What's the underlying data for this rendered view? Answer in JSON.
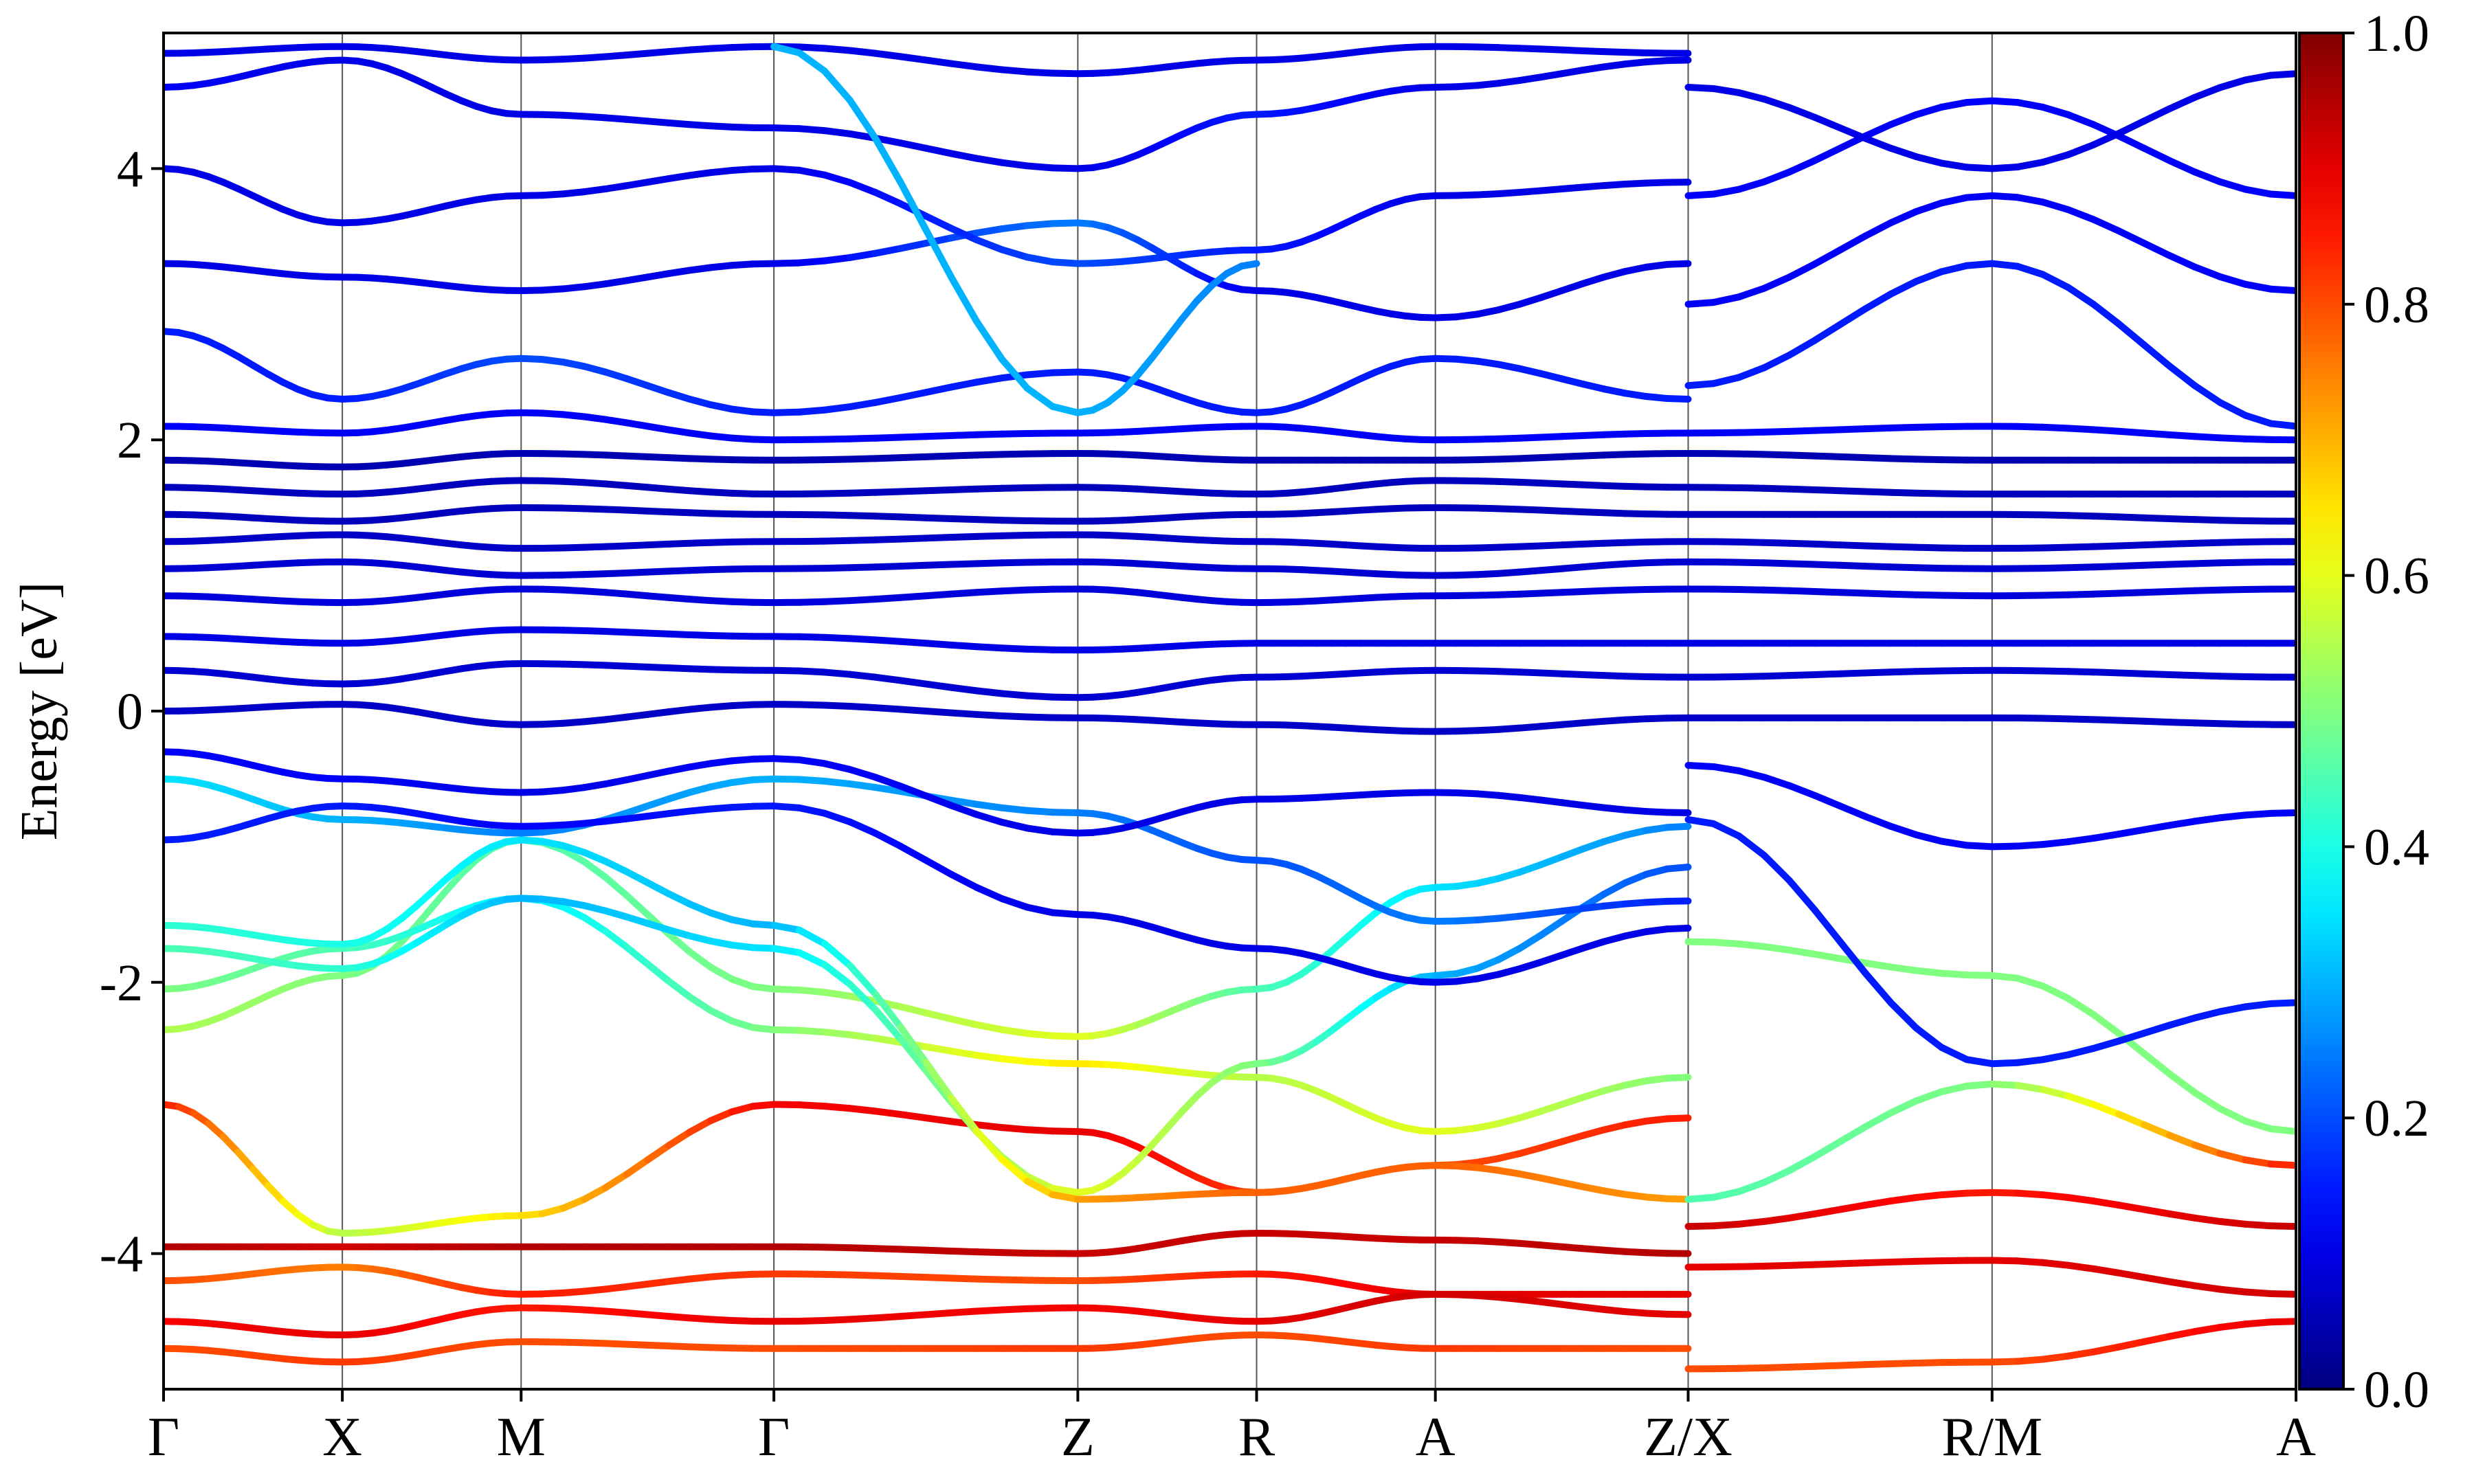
{
  "chart_data": {
    "type": "line",
    "title": "",
    "xlabel": "",
    "ylabel": "Energy [eV]",
    "ylim": [
      -5,
      5
    ],
    "y_ticks": [
      -4,
      -2,
      0,
      2,
      4
    ],
    "y_tick_labels": [
      "-4",
      "-2",
      "0",
      "2",
      "4"
    ],
    "grid": false,
    "kpoints": [
      {
        "label": "Γ",
        "x": 0.0
      },
      {
        "label": "X",
        "x": 0.5
      },
      {
        "label": "M",
        "x": 1.0
      },
      {
        "label": "Γ",
        "x": 1.707
      },
      {
        "label": "Z",
        "x": 2.557
      },
      {
        "label": "R",
        "x": 3.057
      },
      {
        "label": "A",
        "x": 3.557
      },
      {
        "label": "Z/X",
        "x": 4.264
      },
      {
        "label": "R/M",
        "x": 5.114
      },
      {
        "label": "A",
        "x": 5.964
      }
    ],
    "xlim": [
      0,
      5.964
    ],
    "colorbar": {
      "colormap": "jet",
      "range": [
        0.0,
        1.0
      ],
      "ticks": [
        0.0,
        0.2,
        0.4,
        0.6,
        0.8,
        1.0
      ],
      "tick_labels": [
        "0.0",
        "0.2",
        "0.4",
        "0.6",
        "0.8",
        "1.0"
      ],
      "placement": "right"
    },
    "series": [
      {
        "x": [
          0,
          0.5,
          1,
          1.707,
          2.557,
          3.057,
          3.557,
          4.264
        ],
        "y": [
          -2.9,
          -3.85,
          -3.72,
          -2.9,
          -3.1,
          -3.55,
          -3.35,
          -3.0
        ],
        "weight": [
          0.85,
          0.55,
          0.65,
          0.88,
          0.9,
          0.82,
          0.8,
          0.85
        ]
      },
      {
        "x": [
          0,
          0.5,
          1,
          1.707,
          2.557,
          3.057,
          3.557,
          4.264
        ],
        "y": [
          -2.35,
          -1.95,
          -0.95,
          -2.05,
          -2.4,
          -2.05,
          -1.3,
          -0.85
        ],
        "weight": [
          0.55,
          0.5,
          0.45,
          0.5,
          0.6,
          0.45,
          0.35,
          0.25
        ]
      },
      {
        "x": [
          0,
          0.5,
          1,
          1.707,
          2.557,
          3.057,
          3.557,
          4.264
        ],
        "y": [
          -2.05,
          -1.75,
          -1.38,
          -2.35,
          -2.6,
          -2.7,
          -3.1,
          -2.7
        ],
        "weight": [
          0.5,
          0.45,
          0.35,
          0.5,
          0.65,
          0.55,
          0.6,
          0.5
        ]
      },
      {
        "x": [
          0,
          0.5,
          1,
          1.707,
          2.557,
          3.057,
          3.557,
          4.264
        ],
        "y": [
          -1.75,
          -1.9,
          -1.38,
          -1.75,
          -3.55,
          -2.6,
          -1.95,
          -1.15
        ],
        "weight": [
          0.45,
          0.42,
          0.3,
          0.35,
          0.6,
          0.5,
          0.3,
          0.2
        ]
      },
      {
        "x": [
          0,
          0.5,
          1,
          1.707,
          2.557,
          3.057,
          3.557,
          4.264
        ],
        "y": [
          -1.58,
          -1.72,
          -0.95,
          -1.58,
          -3.6,
          -3.55,
          -3.35,
          -3.6
        ],
        "weight": [
          0.42,
          0.4,
          0.35,
          0.3,
          0.72,
          0.78,
          0.78,
          0.72
        ]
      },
      {
        "x": [
          0,
          0.5,
          1,
          1.707,
          2.557,
          3.057,
          3.557,
          4.264
        ],
        "y": [
          -0.5,
          -0.8,
          -0.9,
          -0.5,
          -0.75,
          -1.1,
          -1.55,
          -1.4
        ],
        "weight": [
          0.35,
          0.3,
          0.25,
          0.3,
          0.25,
          0.2,
          0.25,
          0.15
        ]
      },
      {
        "x": [
          0,
          0.5,
          1,
          1.707,
          2.557,
          3.057,
          3.557,
          4.264
        ],
        "y": [
          -0.95,
          -0.7,
          -0.85,
          -0.7,
          -1.5,
          -1.75,
          -2.0,
          -1.6
        ],
        "weight": [
          0.15,
          0.15,
          0.12,
          0.15,
          0.1,
          0.1,
          0.1,
          0.1
        ]
      },
      {
        "x": [
          0,
          0.5,
          1,
          1.707,
          2.557,
          3.057,
          3.557,
          4.264
        ],
        "y": [
          -0.3,
          -0.5,
          -0.6,
          -0.35,
          -0.9,
          -0.65,
          -0.6,
          -0.75
        ],
        "weight": [
          0.12,
          0.12,
          0.1,
          0.12,
          0.1,
          0.1,
          0.1,
          0.1
        ]
      },
      {
        "x": [
          0,
          0.5,
          1,
          1.707,
          2.557,
          3.057,
          3.557,
          4.264
        ],
        "y": [
          -3.95,
          -3.95,
          -3.95,
          -3.95,
          -4.0,
          -3.85,
          -3.9,
          -4.0
        ],
        "weight": [
          0.95,
          0.92,
          0.95,
          0.95,
          0.93,
          0.93,
          0.93,
          0.95
        ]
      },
      {
        "x": [
          0,
          0.5,
          1,
          1.707,
          2.557,
          3.057,
          3.557,
          4.264
        ],
        "y": [
          -4.2,
          -4.1,
          -4.3,
          -4.15,
          -4.2,
          -4.15,
          -4.3,
          -4.3
        ],
        "weight": [
          0.8,
          0.75,
          0.85,
          0.82,
          0.8,
          0.85,
          0.9,
          0.9
        ]
      },
      {
        "x": [
          0,
          0.5,
          1,
          1.707,
          2.557,
          3.057,
          3.557,
          4.264
        ],
        "y": [
          -4.5,
          -4.6,
          -4.4,
          -4.5,
          -4.4,
          -4.5,
          -4.3,
          -4.45
        ],
        "weight": [
          0.88,
          0.9,
          0.85,
          0.9,
          0.88,
          0.9,
          0.92,
          0.9
        ]
      },
      {
        "x": [
          0,
          0.5,
          1,
          1.707,
          2.557,
          3.057,
          3.557,
          4.264
        ],
        "y": [
          -4.7,
          -4.8,
          -4.65,
          -4.7,
          -4.7,
          -4.6,
          -4.7,
          -4.7
        ],
        "weight": [
          0.8,
          0.82,
          0.8,
          0.8,
          0.82,
          0.8,
          0.82,
          0.8
        ]
      },
      {
        "x": [
          4.264,
          5.114,
          5.964
        ],
        "y": [
          -1.7,
          -1.95,
          -3.1
        ],
        "weight": [
          0.5,
          0.5,
          0.5
        ]
      },
      {
        "x": [
          4.264,
          5.114,
          5.964
        ],
        "y": [
          -3.6,
          -2.75,
          -3.35
        ],
        "weight": [
          0.45,
          0.5,
          0.85
        ]
      },
      {
        "x": [
          4.264,
          5.114,
          5.964
        ],
        "y": [
          -3.8,
          -3.55,
          -3.8
        ],
        "weight": [
          0.93,
          0.85,
          0.93
        ]
      },
      {
        "x": [
          4.264,
          5.114,
          5.964
        ],
        "y": [
          -4.1,
          -4.05,
          -4.3
        ],
        "weight": [
          0.9,
          0.9,
          0.92
        ]
      },
      {
        "x": [
          4.264,
          5.114,
          5.964
        ],
        "y": [
          -4.85,
          -4.8,
          -4.5
        ],
        "weight": [
          0.8,
          0.8,
          0.9
        ]
      },
      {
        "x": [
          4.264,
          5.114,
          5.964
        ],
        "y": [
          -0.8,
          -2.6,
          -2.15
        ],
        "weight": [
          0.15,
          0.15,
          0.15
        ]
      },
      {
        "x": [
          4.264,
          5.114,
          5.964
        ],
        "y": [
          -0.4,
          -1.0,
          -0.75
        ],
        "weight": [
          0.12,
          0.12,
          0.12
        ]
      },
      {
        "x": [
          0,
          0.5,
          1,
          1.707,
          2.557,
          3.057,
          3.557,
          4.264,
          5.114,
          5.964
        ],
        "y": [
          0.3,
          0.2,
          0.35,
          0.3,
          0.1,
          0.25,
          0.3,
          0.25,
          0.3,
          0.25
        ],
        "weight": [
          0.08,
          0.08,
          0.08,
          0.08,
          0.08,
          0.08,
          0.08,
          0.08,
          0.08,
          0.08
        ]
      },
      {
        "x": [
          0,
          0.5,
          1,
          1.707,
          2.557,
          3.057,
          3.557,
          4.264,
          5.114,
          5.964
        ],
        "y": [
          0.55,
          0.5,
          0.6,
          0.55,
          0.45,
          0.5,
          0.5,
          0.5,
          0.5,
          0.5
        ],
        "weight": [
          0.1,
          0.1,
          0.1,
          0.1,
          0.1,
          0.1,
          0.1,
          0.1,
          0.1,
          0.1
        ]
      },
      {
        "x": [
          0,
          0.5,
          1,
          1.707,
          2.557,
          3.057,
          3.557,
          4.264,
          5.114,
          5.964
        ],
        "y": [
          0.0,
          0.05,
          -0.1,
          0.05,
          -0.05,
          -0.1,
          -0.15,
          -0.05,
          -0.05,
          -0.1
        ],
        "weight": [
          0.07,
          0.07,
          0.07,
          0.07,
          0.07,
          0.07,
          0.07,
          0.07,
          0.07,
          0.07
        ]
      },
      {
        "x": [
          0,
          0.5,
          1,
          1.707,
          2.557,
          3.057,
          3.557,
          4.264,
          5.114,
          5.964
        ],
        "y": [
          0.85,
          0.8,
          0.9,
          0.8,
          0.9,
          0.8,
          0.85,
          0.9,
          0.85,
          0.9
        ],
        "weight": [
          0.09,
          0.09,
          0.09,
          0.09,
          0.09,
          0.09,
          0.09,
          0.09,
          0.09,
          0.09
        ]
      },
      {
        "x": [
          0,
          0.5,
          1,
          1.707,
          2.557,
          3.057,
          3.557,
          4.264,
          5.114,
          5.964
        ],
        "y": [
          1.05,
          1.1,
          1.0,
          1.05,
          1.1,
          1.05,
          1.0,
          1.1,
          1.05,
          1.1
        ],
        "weight": [
          0.08,
          0.08,
          0.08,
          0.08,
          0.08,
          0.08,
          0.08,
          0.08,
          0.08,
          0.08
        ]
      },
      {
        "x": [
          0,
          0.5,
          1,
          1.707,
          2.557,
          3.057,
          3.557,
          4.264,
          5.114,
          5.964
        ],
        "y": [
          1.25,
          1.3,
          1.2,
          1.25,
          1.3,
          1.25,
          1.2,
          1.25,
          1.2,
          1.25
        ],
        "weight": [
          0.07,
          0.07,
          0.07,
          0.07,
          0.07,
          0.07,
          0.07,
          0.07,
          0.07,
          0.07
        ]
      },
      {
        "x": [
          0,
          0.5,
          1,
          1.707,
          2.557,
          3.057,
          3.557,
          4.264,
          5.114,
          5.964
        ],
        "y": [
          1.45,
          1.4,
          1.5,
          1.45,
          1.4,
          1.45,
          1.5,
          1.45,
          1.45,
          1.4
        ],
        "weight": [
          0.06,
          0.06,
          0.06,
          0.06,
          0.06,
          0.06,
          0.06,
          0.06,
          0.06,
          0.06
        ]
      },
      {
        "x": [
          0,
          0.5,
          1,
          1.707,
          2.557,
          3.057,
          3.557,
          4.264,
          5.114,
          5.964
        ],
        "y": [
          1.65,
          1.6,
          1.7,
          1.6,
          1.65,
          1.6,
          1.7,
          1.65,
          1.6,
          1.6
        ],
        "weight": [
          0.06,
          0.06,
          0.06,
          0.06,
          0.06,
          0.06,
          0.06,
          0.06,
          0.06,
          0.06
        ]
      },
      {
        "x": [
          0,
          0.5,
          1,
          1.707,
          2.557,
          3.057,
          3.557,
          4.264,
          5.114,
          5.964
        ],
        "y": [
          1.85,
          1.8,
          1.9,
          1.85,
          1.9,
          1.85,
          1.85,
          1.9,
          1.85,
          1.85
        ],
        "weight": [
          0.05,
          0.05,
          0.05,
          0.05,
          0.05,
          0.05,
          0.05,
          0.05,
          0.05,
          0.05
        ]
      },
      {
        "x": [
          0,
          0.5,
          1,
          1.707,
          2.557,
          3.057,
          3.557,
          4.264,
          5.114,
          5.964
        ],
        "y": [
          2.1,
          2.05,
          2.2,
          2.0,
          2.05,
          2.1,
          2.0,
          2.05,
          2.1,
          2.0
        ],
        "weight": [
          0.12,
          0.12,
          0.12,
          0.12,
          0.12,
          0.12,
          0.12,
          0.12,
          0.12,
          0.12
        ]
      },
      {
        "x": [
          0,
          0.5,
          1,
          1.707,
          2.557,
          3.057,
          3.557,
          4.264
        ],
        "y": [
          2.8,
          2.3,
          2.6,
          2.2,
          2.5,
          2.2,
          2.6,
          2.3
        ],
        "weight": [
          0.15,
          0.15,
          0.2,
          0.15,
          0.15,
          0.15,
          0.15,
          0.15
        ]
      },
      {
        "x": [
          0,
          0.5,
          1,
          1.707,
          2.557,
          3.057,
          3.557,
          4.264
        ],
        "y": [
          3.3,
          3.2,
          3.1,
          3.3,
          3.6,
          3.1,
          2.9,
          3.3
        ],
        "weight": [
          0.1,
          0.1,
          0.1,
          0.1,
          0.25,
          0.1,
          0.1,
          0.1
        ]
      },
      {
        "x": [
          0,
          0.5,
          1,
          1.707,
          2.557,
          3.057,
          3.557,
          4.264
        ],
        "y": [
          4.0,
          3.6,
          3.8,
          4.0,
          3.3,
          3.4,
          3.8,
          3.9
        ],
        "weight": [
          0.1,
          0.1,
          0.1,
          0.1,
          0.2,
          0.15,
          0.1,
          0.1
        ]
      },
      {
        "x": [
          0,
          0.5,
          1,
          1.707,
          2.557,
          3.057,
          3.557,
          4.264
        ],
        "y": [
          4.6,
          4.8,
          4.4,
          4.3,
          4.0,
          4.4,
          4.6,
          4.8
        ],
        "weight": [
          0.12,
          0.1,
          0.1,
          0.1,
          0.1,
          0.15,
          0.1,
          0.1
        ]
      },
      {
        "x": [
          0,
          0.5,
          1,
          1.707,
          2.557,
          3.057,
          3.557,
          4.264
        ],
        "y": [
          4.85,
          4.9,
          4.8,
          4.9,
          4.7,
          4.8,
          4.9,
          4.85
        ],
        "weight": [
          0.1,
          0.1,
          0.1,
          0.1,
          0.1,
          0.1,
          0.1,
          0.1
        ]
      },
      {
        "x": [
          1.707,
          2.557,
          3.057
        ],
        "y": [
          4.9,
          2.2,
          3.3
        ],
        "weight": [
          0.3,
          0.3,
          0.25
        ]
      },
      {
        "x": [
          4.264,
          5.114,
          5.964
        ],
        "y": [
          2.4,
          3.3,
          2.1
        ],
        "weight": [
          0.15,
          0.15,
          0.15
        ]
      },
      {
        "x": [
          4.264,
          5.114,
          5.964
        ],
        "y": [
          3.0,
          3.8,
          3.1
        ],
        "weight": [
          0.12,
          0.12,
          0.12
        ]
      },
      {
        "x": [
          4.264,
          5.114,
          5.964
        ],
        "y": [
          3.8,
          4.5,
          3.8
        ],
        "weight": [
          0.12,
          0.12,
          0.12
        ]
      },
      {
        "x": [
          4.264,
          5.114,
          5.964
        ],
        "y": [
          4.6,
          4.0,
          4.7
        ],
        "weight": [
          0.1,
          0.1,
          0.1
        ]
      }
    ]
  }
}
